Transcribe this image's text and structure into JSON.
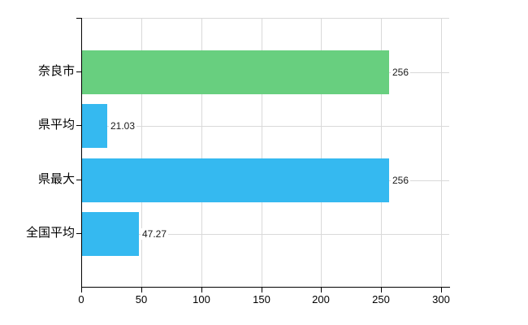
{
  "chart_data": {
    "type": "bar",
    "orientation": "horizontal",
    "title": "",
    "xlabel": "",
    "ylabel": "",
    "categories": [
      "奈良市",
      "県平均",
      "県最大",
      "全国平均"
    ],
    "values": [
      256,
      21.03,
      256,
      47.27
    ],
    "value_labels": [
      "256",
      "21.03",
      "256",
      "47.27"
    ],
    "bar_colors": [
      "#68cf7f",
      "#35b9f0",
      "#35b9f0",
      "#35b9f0"
    ],
    "xlim": [
      0,
      300
    ],
    "xticks": [
      0,
      50,
      100,
      150,
      200,
      250,
      300
    ],
    "xtick_labels": [
      "0",
      "50",
      "100",
      "150",
      "200",
      "250",
      "300"
    ],
    "grid": true,
    "legend": false,
    "colors": {
      "grid": "#d9d9d9",
      "axis": "#000000",
      "text": "#000000",
      "background": "#ffffff"
    }
  }
}
